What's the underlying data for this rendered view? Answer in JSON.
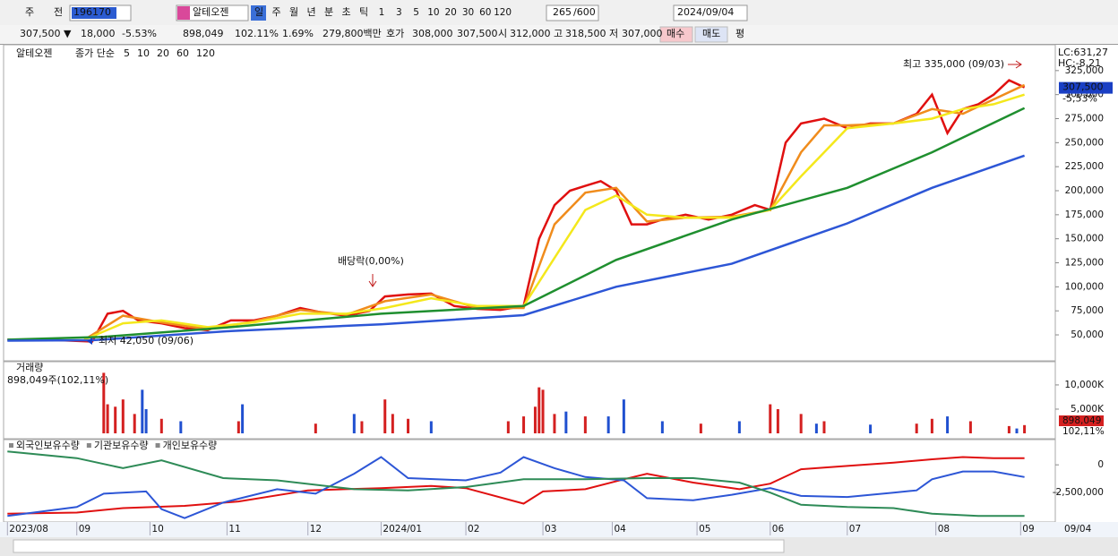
{
  "toolbar": {
    "market": "주",
    "prev": "전",
    "code": "196170",
    "name": "알테오젠",
    "periods": [
      "일",
      "주",
      "월",
      "년",
      "분",
      "초",
      "틱"
    ],
    "intervals": [
      "1",
      "3",
      "5",
      "10",
      "20",
      "30",
      "60",
      "120"
    ],
    "count": "265",
    "max": "/600",
    "date": "2024/09/04"
  },
  "quote": {
    "items": [
      "307,500 ▼",
      "18,000",
      "-5.53%",
      "898,049",
      "102.11%",
      "1.69%",
      "279,800백만",
      "호가",
      "308,000",
      "307,500",
      "시",
      "312,000",
      "고",
      "318,500",
      "저",
      "307,000",
      "매수",
      "매도",
      "평"
    ]
  },
  "chart_data": [
    {
      "type": "line",
      "title": "알테오젠",
      "legend_label": "종가 단순",
      "xlim": [
        -1,
        272
      ],
      "xticks": [
        {
          "value": 0,
          "label": "2023/08"
        },
        {
          "value": 18,
          "label": "09"
        },
        {
          "value": 37,
          "label": "10"
        },
        {
          "value": 57,
          "label": "11"
        },
        {
          "value": 78,
          "label": "12"
        },
        {
          "value": 97,
          "label": "2024/01"
        },
        {
          "value": 119,
          "label": "02"
        },
        {
          "value": 139,
          "label": "03"
        },
        {
          "value": 157,
          "label": "04"
        },
        {
          "value": 179,
          "label": "05"
        },
        {
          "value": 198,
          "label": "06"
        },
        {
          "value": 218,
          "label": "07"
        },
        {
          "value": 241,
          "label": "08"
        },
        {
          "value": 263,
          "label": "09"
        }
      ],
      "x_end_label": "09/04",
      "ylim": [
        23000,
        350000
      ],
      "yticks": [
        {
          "value": 50000,
          "label": "50,000"
        },
        {
          "value": 75000,
          "label": "75,000"
        },
        {
          "value": 100000,
          "label": "100,000"
        },
        {
          "value": 125000,
          "label": "125,000"
        },
        {
          "value": 150000,
          "label": "150,000"
        },
        {
          "value": 175000,
          "label": "175,000"
        },
        {
          "value": 200000,
          "label": "200,000"
        },
        {
          "value": 225000,
          "label": "225,000"
        },
        {
          "value": 250000,
          "label": "250,000"
        },
        {
          "value": 275000,
          "label": "275,000"
        },
        {
          "value": 300000,
          "label": "300,000"
        },
        {
          "value": 325000,
          "label": "325,000"
        }
      ],
      "series": [
        {
          "name": "5",
          "color": "#e01010",
          "x": [
            0,
            10,
            22,
            26,
            30,
            34,
            40,
            46,
            52,
            58,
            64,
            70,
            76,
            82,
            88,
            94,
            98,
            104,
            110,
            116,
            122,
            128,
            134,
            138,
            142,
            146,
            150,
            154,
            158,
            162,
            166,
            170,
            176,
            182,
            188,
            194,
            198,
            202,
            206,
            212,
            218,
            224,
            230,
            236,
            240,
            244,
            248,
            252,
            256,
            260,
            264
          ],
          "values": [
            45000,
            45000,
            43000,
            72000,
            75000,
            65000,
            62000,
            57000,
            55000,
            65000,
            65000,
            70000,
            78000,
            73000,
            70000,
            75000,
            90000,
            92000,
            93000,
            80000,
            77000,
            76000,
            80000,
            150000,
            185000,
            200000,
            205000,
            210000,
            200000,
            165000,
            165000,
            170000,
            175000,
            170000,
            175000,
            185000,
            180000,
            250000,
            270000,
            275000,
            265000,
            270000,
            270000,
            280000,
            300000,
            260000,
            285000,
            290000,
            300000,
            315000,
            307500
          ]
        },
        {
          "name": "10",
          "color": "#f08c1c",
          "x": [
            20,
            30,
            40,
            52,
            64,
            76,
            88,
            98,
            110,
            122,
            134,
            142,
            150,
            158,
            166,
            176,
            188,
            198,
            206,
            212,
            218,
            230,
            240,
            248,
            256,
            264
          ],
          "values": [
            45000,
            70000,
            63000,
            56000,
            64000,
            76000,
            71000,
            85000,
            92000,
            78000,
            78000,
            165000,
            198000,
            203000,
            168000,
            172000,
            173000,
            180000,
            240000,
            268000,
            268000,
            270000,
            285000,
            280000,
            295000,
            310000
          ]
        },
        {
          "name": "20",
          "color": "#f4e81c",
          "x": [
            20,
            30,
            40,
            52,
            64,
            76,
            88,
            98,
            110,
            122,
            134,
            142,
            150,
            158,
            166,
            176,
            188,
            198,
            206,
            212,
            218,
            230,
            240,
            248,
            256,
            264
          ],
          "values": [
            45000,
            62000,
            65000,
            58000,
            63000,
            72000,
            72000,
            78000,
            88000,
            80000,
            80000,
            130000,
            180000,
            195000,
            175000,
            172000,
            172000,
            180000,
            215000,
            240000,
            265000,
            270000,
            275000,
            285000,
            290000,
            300000
          ]
        },
        {
          "name": "60",
          "color": "#1f8f2f",
          "x": [
            0,
            25,
            58,
            97,
            134,
            158,
            188,
            218,
            240,
            264
          ],
          "values": [
            45000,
            48000,
            58000,
            72000,
            80000,
            128000,
            170000,
            203000,
            240000,
            286000
          ]
        },
        {
          "name": "120",
          "color": "#2d56d6",
          "x": [
            0,
            22,
            58,
            97,
            134,
            158,
            188,
            218,
            240,
            264
          ],
          "values": [
            44000,
            44400,
            54000,
            61000,
            70500,
            100000,
            124000,
            166000,
            203000,
            236500
          ]
        }
      ],
      "high_label": "최고 335,000 (09/03)",
      "low_label": "최저 42,050 (09/06)",
      "dividend_label": "배당락(0,00%)",
      "lc_label": "LC:631,27",
      "hc_label": "HC:-8,21",
      "last_price": {
        "value": 307500,
        "label": "307,500"
      },
      "last_change": "-5,53%"
    },
    {
      "type": "bar",
      "title": "거래량",
      "subtitle": "898,049주(102,11%)",
      "xlim": [
        -1,
        272
      ],
      "ylim": [
        0,
        13500
      ],
      "yticks": [
        {
          "value": 5000,
          "label": "5,000K"
        },
        {
          "value": 10000,
          "label": "10,000K"
        }
      ],
      "last_volume": "898,049",
      "last_ratio": "102,11%",
      "series": [
        {
          "color": "#d42020",
          "x": [
            25,
            26,
            28,
            30,
            33,
            40,
            60,
            80,
            92,
            98,
            100,
            104,
            130,
            134,
            137,
            138,
            139,
            142,
            150,
            180,
            198,
            200,
            206,
            212,
            236,
            240,
            250,
            260,
            264
          ],
          "values": [
            12500,
            6000,
            5500,
            7000,
            4000,
            3000,
            2500,
            2000,
            2500,
            7000,
            4000,
            3000,
            2500,
            3500,
            5500,
            9500,
            9000,
            4000,
            3500,
            2000,
            6000,
            5000,
            4000,
            2500,
            2000,
            3000,
            2500,
            1500,
            1700
          ]
        },
        {
          "color": "#2050d0",
          "x": [
            35,
            36,
            45,
            61,
            90,
            110,
            145,
            156,
            160,
            170,
            190,
            210,
            224,
            244,
            262
          ],
          "values": [
            9000,
            5000,
            2500,
            6000,
            4000,
            2500,
            4500,
            3500,
            7000,
            2500,
            2500,
            2000,
            1800,
            3500,
            1000
          ]
        }
      ]
    },
    {
      "type": "line",
      "xlim": [
        -1,
        272
      ],
      "ylim": [
        -5150000,
        1950000
      ],
      "yticks": [
        0,
        {
          "value": -2500000,
          "label": "-2,500,000"
        }
      ],
      "series": [
        {
          "name": "외국인보유수량",
          "color": "#e01010",
          "x": [
            0,
            18,
            30,
            46,
            60,
            78,
            97,
            110,
            119,
            134,
            139,
            150,
            160,
            166,
            178,
            190,
            198,
            206,
            218,
            230,
            240,
            248,
            256,
            264
          ],
          "values": [
            -4400000,
            -4300000,
            -3900000,
            -3700000,
            -3300000,
            -2300000,
            -2100000,
            -1900000,
            -2100000,
            -3500000,
            -2400000,
            -2200000,
            -1300000,
            -800000,
            -1600000,
            -2200000,
            -1700000,
            -400000,
            -100000,
            200000,
            500000,
            700000,
            600000,
            600000
          ]
        },
        {
          "name": "기관보유수량",
          "color": "#2d56d6",
          "x": [
            0,
            18,
            25,
            36,
            40,
            46,
            56,
            70,
            80,
            90,
            97,
            104,
            119,
            128,
            134,
            142,
            150,
            160,
            166,
            178,
            188,
            198,
            206,
            218,
            230,
            236,
            240,
            248,
            256,
            264
          ],
          "values": [
            -4600000,
            -3800000,
            -2600000,
            -2400000,
            -4000000,
            -4800000,
            -3400000,
            -2200000,
            -2600000,
            -800000,
            700000,
            -1200000,
            -1400000,
            -700000,
            700000,
            -300000,
            -1100000,
            -1400000,
            -3000000,
            -3200000,
            -2700000,
            -2100000,
            -2800000,
            -2900000,
            -2500000,
            -2300000,
            -1300000,
            -600000,
            -600000,
            -1100000
          ]
        },
        {
          "name": "개인보유수량",
          "color": "#2e8b57",
          "x": [
            0,
            18,
            30,
            40,
            56,
            70,
            90,
            104,
            119,
            134,
            150,
            166,
            178,
            190,
            198,
            206,
            218,
            230,
            240,
            252,
            264
          ],
          "values": [
            1200000,
            600000,
            -300000,
            400000,
            -1200000,
            -1400000,
            -2200000,
            -2300000,
            -2000000,
            -1300000,
            -1300000,
            -1200000,
            -1200000,
            -1600000,
            -2500000,
            -3600000,
            -3800000,
            -3900000,
            -4400000,
            -4600000,
            -4600000
          ]
        }
      ]
    }
  ]
}
